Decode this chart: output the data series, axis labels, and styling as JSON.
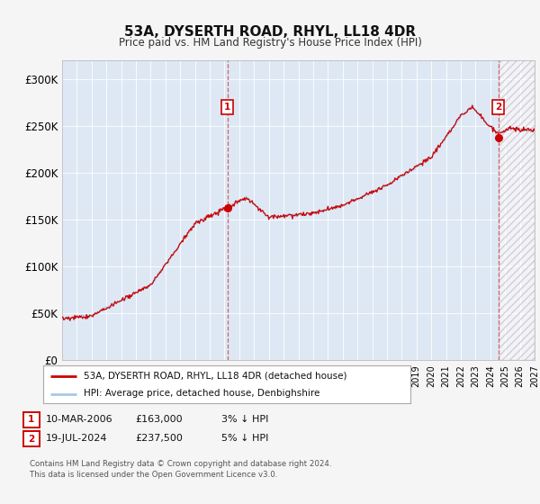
{
  "title": "53A, DYSERTH ROAD, RHYL, LL18 4DR",
  "subtitle": "Price paid vs. HM Land Registry's House Price Index (HPI)",
  "ylim": [
    0,
    320000
  ],
  "yticks": [
    0,
    50000,
    100000,
    150000,
    200000,
    250000,
    300000
  ],
  "ytick_labels": [
    "£0",
    "£50K",
    "£100K",
    "£150K",
    "£200K",
    "£250K",
    "£300K"
  ],
  "x_start_year": 1995,
  "x_end_year": 2027,
  "hpi_color": "#a8c8e8",
  "price_color": "#cc0000",
  "plot_bg": "#dde8f4",
  "grid_color": "#ffffff",
  "fig_bg": "#f5f5f5",
  "transaction1_year": 2006.19,
  "transaction1_price": 163000,
  "transaction2_year": 2024.54,
  "transaction2_price": 237500,
  "legend_label1": "53A, DYSERTH ROAD, RHYL, LL18 4DR (detached house)",
  "legend_label2": "HPI: Average price, detached house, Denbighshire",
  "note1_date": "10-MAR-2006",
  "note1_price": "£163,000",
  "note1_pct": "3% ↓ HPI",
  "note2_date": "19-JUL-2024",
  "note2_price": "£237,500",
  "note2_pct": "5% ↓ HPI",
  "footer": "Contains HM Land Registry data © Crown copyright and database right 2024.\nThis data is licensed under the Open Government Licence v3.0.",
  "future_cutoff": 2024.6,
  "vline_color": "#cc6666",
  "hatch_edge_color": "#ccaaaa"
}
